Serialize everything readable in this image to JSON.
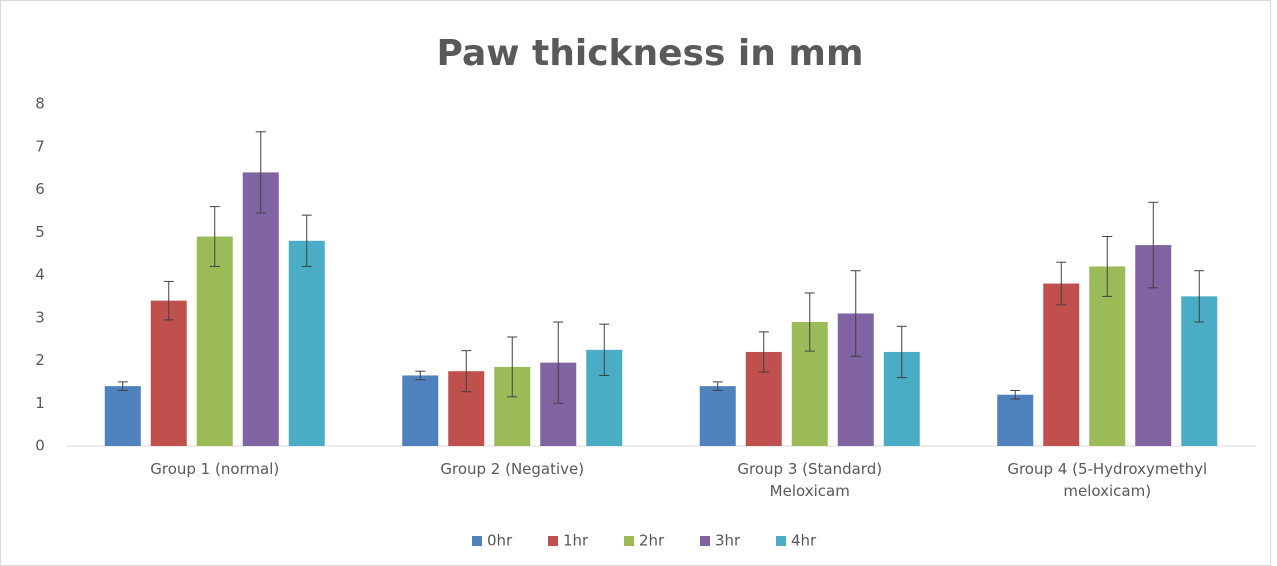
{
  "chart_data": {
    "type": "bar",
    "title": "Paw thickness in mm",
    "categories": [
      [
        "Group 1 (normal)"
      ],
      [
        "Group 2 (Negative)"
      ],
      [
        "Group 3 (Standard)",
        "Meloxicam"
      ],
      [
        "Group 4 (5-Hydroxymethyl",
        "meloxicam)"
      ]
    ],
    "series": [
      {
        "name": "0hr",
        "color": "#4f81bd",
        "values": [
          1.4,
          1.65,
          1.4,
          1.2
        ],
        "errors": [
          0.1,
          0.1,
          0.1,
          0.1
        ]
      },
      {
        "name": "1hr",
        "color": "#c0504d",
        "values": [
          3.4,
          1.75,
          2.2,
          3.8
        ],
        "errors": [
          0.45,
          0.48,
          0.47,
          0.5
        ]
      },
      {
        "name": "2hr",
        "color": "#9bbb59",
        "values": [
          4.9,
          1.85,
          2.9,
          4.2
        ],
        "errors": [
          0.7,
          0.7,
          0.68,
          0.7
        ]
      },
      {
        "name": "3hr",
        "color": "#8064a2",
        "values": [
          6.4,
          1.95,
          3.1,
          4.7
        ],
        "errors": [
          0.95,
          0.95,
          1.0,
          1.0
        ]
      },
      {
        "name": "4hr",
        "color": "#4bacc6",
        "values": [
          4.8,
          2.25,
          2.2,
          3.5
        ],
        "errors": [
          0.6,
          0.6,
          0.6,
          0.6
        ]
      }
    ],
    "ylim": [
      0,
      8
    ],
    "yticks": [
      0,
      1,
      2,
      3,
      4,
      5,
      6,
      7,
      8
    ],
    "grid": false,
    "legend": "bottom"
  }
}
